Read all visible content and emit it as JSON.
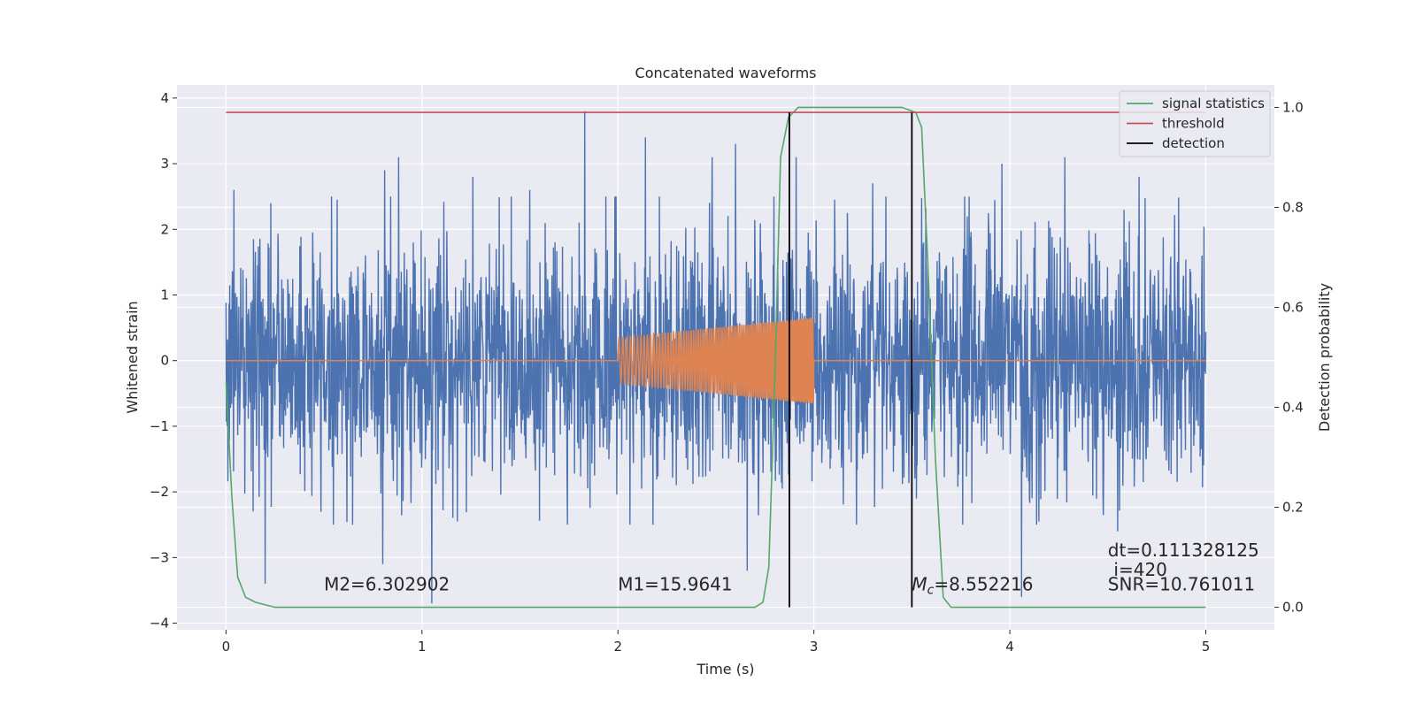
{
  "chart_data": {
    "type": "line",
    "title": "Concatenated waveforms",
    "xlabel": "Time (s)",
    "ylabel": "Whitened strain",
    "ylabel_right": "Detection probability",
    "xlim": [
      -0.25,
      5.35
    ],
    "ylim": [
      -4.1,
      4.2
    ],
    "ylim_right": [
      -0.045,
      1.045
    ],
    "x_ticks": [
      0,
      1,
      2,
      3,
      4,
      5
    ],
    "y_ticks": [
      -4,
      -3,
      -2,
      -1,
      0,
      1,
      2,
      3,
      4
    ],
    "y_ticks_right": [
      0.0,
      0.2,
      0.4,
      0.6,
      0.8,
      1.0
    ],
    "x_tick_labels": [
      "0",
      "1",
      "2",
      "3",
      "4",
      "5"
    ],
    "y_tick_labels": [
      "−4",
      "−3",
      "−2",
      "−1",
      "0",
      "1",
      "2",
      "3",
      "4"
    ],
    "y_tick_labels_right": [
      "0.0",
      "0.2",
      "0.4",
      "0.6",
      "0.8",
      "1.0"
    ],
    "grid": true,
    "legend_position": "top-right",
    "colors": {
      "noise": "#4c72b0",
      "signal": "#dd8452",
      "statistics": "#55a868",
      "threshold": "#c44e52",
      "detection": "#000000",
      "background": "#eaeaf2"
    },
    "series": [
      {
        "name": "",
        "axis": "left",
        "kind": "noise",
        "x_range": [
          0,
          5
        ],
        "typical_amplitude": 1.6,
        "peak_values": [
          {
            "x": 0.04,
            "y": 2.6
          },
          {
            "x": 0.2,
            "y": -3.4
          },
          {
            "x": 0.8,
            "y": -3.1
          },
          {
            "x": 0.81,
            "y": 2.9
          },
          {
            "x": 0.88,
            "y": 3.1
          },
          {
            "x": 1.05,
            "y": -3.7
          },
          {
            "x": 1.26,
            "y": 2.8
          },
          {
            "x": 1.55,
            "y": 2.6
          },
          {
            "x": 1.83,
            "y": 3.8
          },
          {
            "x": 2.14,
            "y": 3.4
          },
          {
            "x": 2.48,
            "y": 3.1
          },
          {
            "x": 2.6,
            "y": 3.3
          },
          {
            "x": 2.66,
            "y": -3.2
          },
          {
            "x": 2.91,
            "y": 3.1
          },
          {
            "x": 3.3,
            "y": 2.7
          },
          {
            "x": 3.96,
            "y": 3.0
          },
          {
            "x": 4.06,
            "y": -3.6
          },
          {
            "x": 4.28,
            "y": 3.1
          },
          {
            "x": 4.55,
            "y": -2.6
          },
          {
            "x": 4.66,
            "y": 2.8
          },
          {
            "x": 4.98,
            "y": 1.6
          }
        ]
      },
      {
        "name": "",
        "axis": "left",
        "kind": "chirp",
        "x_range": [
          2,
          3
        ],
        "amplitude_start": 0.35,
        "amplitude_end": 0.66,
        "baseline": 0
      },
      {
        "name": "signal statistics",
        "axis": "right",
        "x": [
          0.0,
          0.03,
          0.06,
          0.1,
          0.15,
          0.25,
          0.5,
          1.0,
          1.5,
          2.0,
          2.5,
          2.7,
          2.74,
          2.77,
          2.8,
          2.83,
          2.87,
          2.92,
          3.0,
          3.2,
          3.45,
          3.52,
          3.55,
          3.58,
          3.62,
          3.66,
          3.7,
          4.0,
          4.5,
          5.0
        ],
        "values": [
          0.45,
          0.22,
          0.06,
          0.02,
          0.01,
          0.0,
          0.0,
          0.0,
          0.0,
          0.0,
          0.0,
          0.0,
          0.01,
          0.08,
          0.45,
          0.9,
          0.98,
          1.0,
          1.0,
          1.0,
          1.0,
          0.99,
          0.96,
          0.7,
          0.3,
          0.02,
          0.0,
          0.0,
          0.0,
          0.0
        ]
      },
      {
        "name": "threshold",
        "axis": "right",
        "x": [
          0,
          5
        ],
        "values": [
          0.99,
          0.99
        ]
      }
    ],
    "detections": {
      "name": "detection",
      "x": [
        2.875,
        3.5
      ],
      "y_range_right": [
        0.0,
        0.99
      ]
    },
    "annotations": [
      {
        "x": 0.5,
        "y": -3.5,
        "text": "M2=6.302902"
      },
      {
        "x": 2.0,
        "y": -3.5,
        "text": "M1=15.9641"
      },
      {
        "x": 3.5,
        "y": -3.5,
        "text": "=8.552216",
        "prefix": "M",
        "subscript": "c"
      },
      {
        "x": 4.5,
        "y": -3.5,
        "text": "SNR=10.761011"
      },
      {
        "x": 4.53,
        "y": -3.28,
        "text": "i=420"
      },
      {
        "x": 4.5,
        "y": -2.98,
        "text": "dt=0.111328125"
      }
    ]
  }
}
